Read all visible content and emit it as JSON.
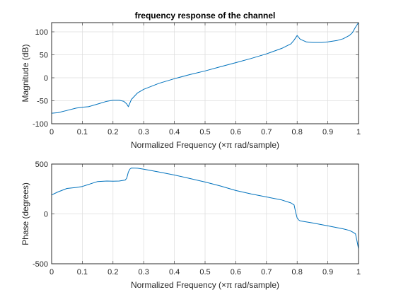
{
  "chart_data": [
    {
      "type": "line",
      "title": "frequency response of the channel",
      "xlabel": "Normalized Frequency  (×π rad/sample)",
      "ylabel": "Magnitude (dB)",
      "xlim": [
        0,
        1
      ],
      "ylim": [
        -100,
        120
      ],
      "xticks": [
        0,
        0.1,
        0.2,
        0.3,
        0.4,
        0.5,
        0.6,
        0.7,
        0.8,
        0.9,
        1
      ],
      "xtick_labels": [
        "0",
        "0.1",
        "0.2",
        "0.3",
        "0.4",
        "0.5",
        "0.6",
        "0.7",
        "0.8",
        "0.9",
        "1"
      ],
      "yticks": [
        -100,
        -50,
        0,
        50,
        100
      ],
      "ytick_labels": [
        "-100",
        "-50",
        "0",
        "50",
        "100"
      ],
      "grid": true,
      "series": [
        {
          "color": "#0072bd",
          "x": [
            0,
            0.02,
            0.05,
            0.08,
            0.1,
            0.12,
            0.15,
            0.18,
            0.2,
            0.22,
            0.235,
            0.245,
            0.25,
            0.26,
            0.28,
            0.3,
            0.35,
            0.4,
            0.45,
            0.5,
            0.55,
            0.6,
            0.65,
            0.7,
            0.75,
            0.78,
            0.79,
            0.8,
            0.81,
            0.83,
            0.85,
            0.88,
            0.9,
            0.93,
            0.95,
            0.97,
            0.98,
            0.99,
            1
          ],
          "y": [
            -77,
            -76,
            -71,
            -66,
            -64,
            -63,
            -57,
            -51,
            -49,
            -49,
            -51,
            -57,
            -63,
            -47,
            -33,
            -25,
            -12,
            -2,
            7,
            15,
            24,
            33,
            42,
            52,
            64,
            74,
            82,
            92,
            84,
            78,
            77,
            77,
            78,
            81,
            85,
            92,
            98,
            110,
            120
          ]
        }
      ]
    },
    {
      "type": "line",
      "title": "",
      "xlabel": "Normalized Frequency  (×π rad/sample)",
      "ylabel": "Phase (degrees)",
      "xlim": [
        0,
        1
      ],
      "ylim": [
        -500,
        500
      ],
      "xticks": [
        0,
        0.1,
        0.2,
        0.3,
        0.4,
        0.5,
        0.6,
        0.7,
        0.8,
        0.9,
        1
      ],
      "xtick_labels": [
        "0",
        "0.1",
        "0.2",
        "0.3",
        "0.4",
        "0.5",
        "0.6",
        "0.7",
        "0.8",
        "0.9",
        "1"
      ],
      "yticks": [
        -500,
        0,
        500
      ],
      "ytick_labels": [
        "-500",
        "0",
        "500"
      ],
      "grid": true,
      "series": [
        {
          "color": "#0072bd",
          "x": [
            0,
            0.02,
            0.05,
            0.08,
            0.1,
            0.12,
            0.15,
            0.18,
            0.2,
            0.22,
            0.24,
            0.245,
            0.25,
            0.255,
            0.26,
            0.28,
            0.3,
            0.35,
            0.4,
            0.45,
            0.5,
            0.55,
            0.6,
            0.65,
            0.7,
            0.75,
            0.78,
            0.79,
            0.795,
            0.8,
            0.805,
            0.81,
            0.85,
            0.9,
            0.95,
            0.97,
            0.98,
            0.99,
            0.995,
            1
          ],
          "y": [
            190,
            220,
            255,
            265,
            275,
            295,
            325,
            330,
            328,
            330,
            340,
            360,
            420,
            450,
            460,
            458,
            448,
            420,
            390,
            355,
            320,
            280,
            235,
            200,
            170,
            140,
            110,
            90,
            20,
            -40,
            -60,
            -70,
            -90,
            -120,
            -150,
            -165,
            -180,
            -200,
            -270,
            -350
          ]
        }
      ]
    }
  ]
}
